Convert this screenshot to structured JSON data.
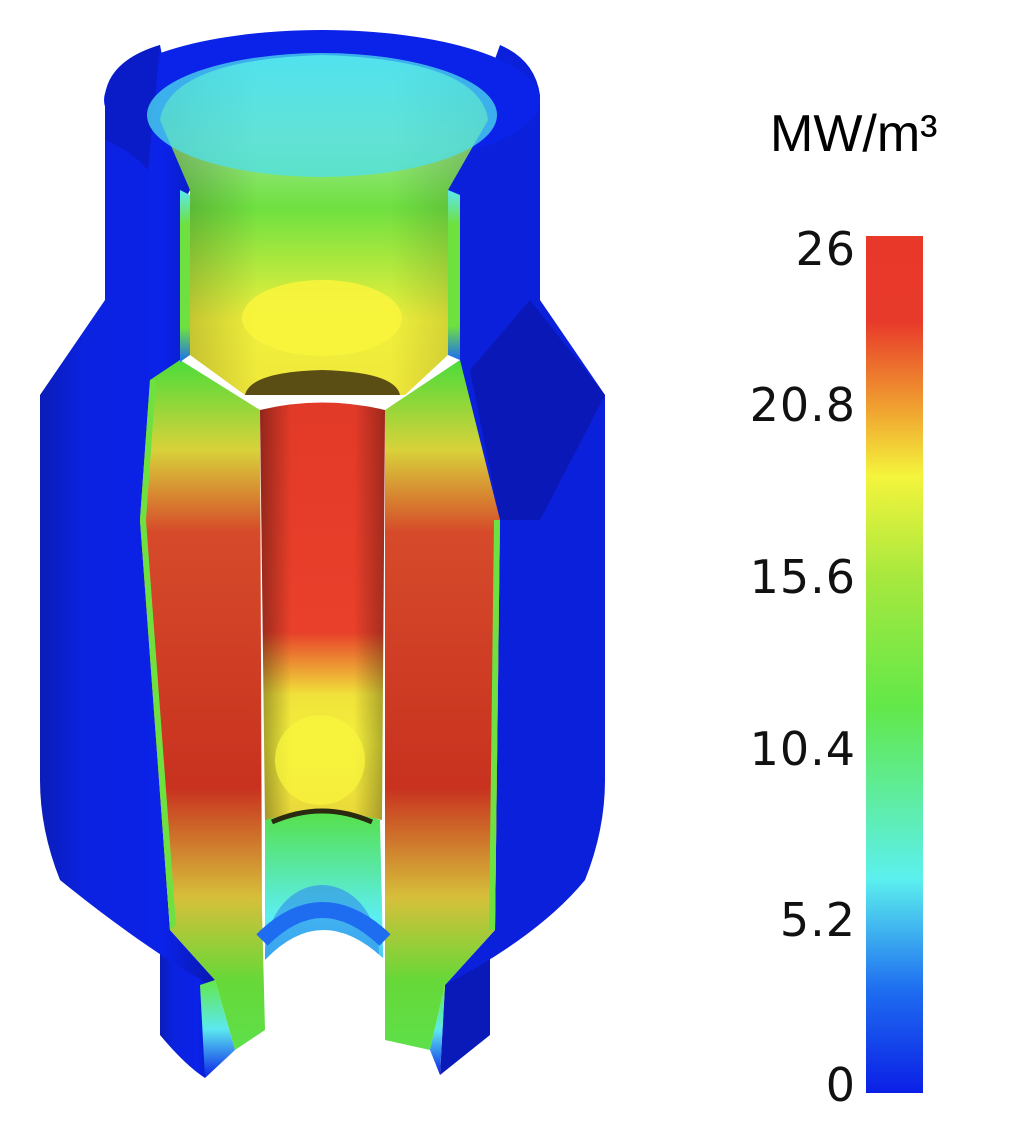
{
  "colorbar": {
    "unit_label": "MW/m³",
    "ticks": [
      "26",
      "20.8",
      "15.6",
      "10.4",
      "5.2",
      "0"
    ],
    "colormap": [
      "#0b1fe6",
      "#1e6df0",
      "#5cf0ee",
      "#62e84a",
      "#a6e83e",
      "#f4f43c",
      "#f0a030",
      "#e83a2a",
      "#e8382a"
    ]
  },
  "colors": {
    "low": "#0b1fe6",
    "mid": "#62e84a",
    "high_mid": "#f4f43c",
    "high": "#e8382a"
  }
}
